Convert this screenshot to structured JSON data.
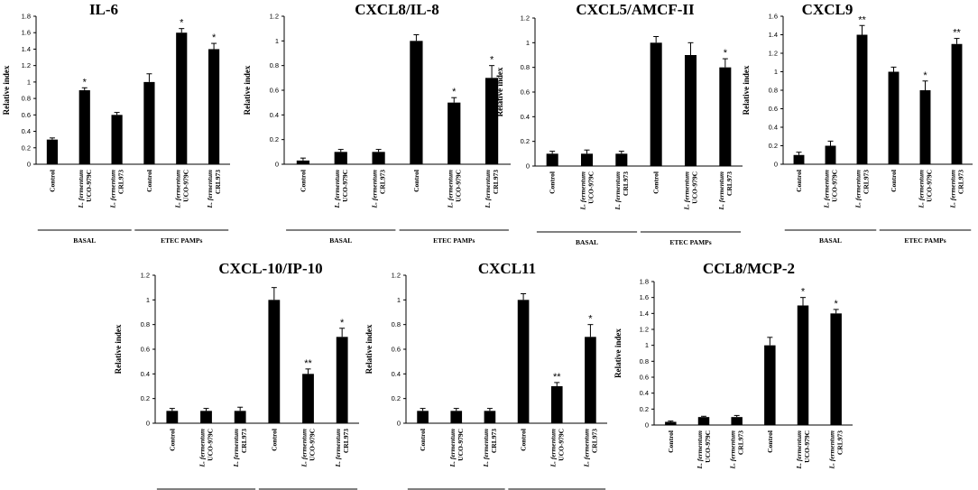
{
  "figure": {
    "background": "#ffffff",
    "bar_color": "#000000"
  },
  "category_labels": {
    "control": "Control",
    "species": "L. fermentum",
    "strain_a": "UCO-979C",
    "strain_b": "CRL973"
  },
  "groups": [
    "BASAL",
    "ETEC PAMPs"
  ],
  "chart_data": [
    {
      "type": "bar",
      "title": "IL-6",
      "ylabel": "Relative index",
      "ylim": [
        0,
        1.8
      ],
      "ytick_step": 0.2,
      "yticks": [
        "0",
        "0.2",
        "0.4",
        "0.6",
        "0.8",
        "1",
        "1.2",
        "1.4",
        "1.6",
        "1.8"
      ],
      "categories": [
        "Control",
        "L. fermentum UCO-979C",
        "L. fermentum CRL973",
        "Control",
        "L. fermentum UCO-979C",
        "L. fermentum CRL973"
      ],
      "values": [
        0.3,
        0.9,
        0.6,
        1.0,
        1.6,
        1.4
      ],
      "errors": [
        0.02,
        0.03,
        0.03,
        0.1,
        0.05,
        0.07
      ],
      "significance": [
        "",
        "*",
        "",
        "",
        "*",
        "*"
      ]
    },
    {
      "type": "bar",
      "title": "CXCL8/IL-8",
      "ylabel": "Relative index",
      "ylim": [
        0,
        1.2
      ],
      "ytick_step": 0.2,
      "yticks": [
        "0",
        "0.2",
        "0.4",
        "0.6",
        "0.8",
        "1",
        "1.2"
      ],
      "categories": [
        "Control",
        "L. fermentum UCO-979C",
        "L. fermentum CRL973",
        "Control",
        "L. fermentum UCO-979C",
        "L. fermentum CRL973"
      ],
      "values": [
        0.03,
        0.1,
        0.1,
        1.0,
        0.5,
        0.7
      ],
      "errors": [
        0.02,
        0.02,
        0.02,
        0.05,
        0.04,
        0.1
      ],
      "significance": [
        "",
        "",
        "",
        "",
        "*",
        "*"
      ]
    },
    {
      "type": "bar",
      "title": "CXCL5/AMCF-II",
      "ylabel": "Relative index",
      "ylim": [
        0,
        1.2
      ],
      "ytick_step": 0.2,
      "yticks": [
        "0",
        "0.2",
        "0.4",
        "0.6",
        "0.8",
        "1",
        "1.2"
      ],
      "categories": [
        "Control",
        "L. fermentum UCO-979C",
        "L. fermentum CRL973",
        "Control",
        "L. fermentum UCO-979C",
        "L. fermentum CRL973"
      ],
      "values": [
        0.1,
        0.1,
        0.1,
        1.0,
        0.9,
        0.8
      ],
      "errors": [
        0.02,
        0.03,
        0.02,
        0.05,
        0.1,
        0.07
      ],
      "significance": [
        "",
        "",
        "",
        "",
        "",
        "*"
      ]
    },
    {
      "type": "bar",
      "title": "CXCL9",
      "ylabel": "Relative index",
      "ylim": [
        0,
        1.6
      ],
      "ytick_step": 0.2,
      "yticks": [
        "0",
        "0.2",
        "0.4",
        "0.6",
        "0.8",
        "1",
        "1.2",
        "1.4",
        "1.6"
      ],
      "categories": [
        "Control",
        "L. fermentum UCO-979C",
        "L. fermentum CRL973",
        "Control",
        "L. fermentum UCO-979C",
        "L. fermentum CRL973"
      ],
      "values": [
        0.1,
        0.2,
        1.4,
        1.0,
        0.8,
        1.3
      ],
      "errors": [
        0.03,
        0.05,
        0.1,
        0.05,
        0.1,
        0.06
      ],
      "significance": [
        "",
        "",
        "**",
        "",
        "*",
        "**"
      ]
    },
    {
      "type": "bar",
      "title": "CXCL-10/IP-10",
      "ylabel": "Relative index",
      "ylim": [
        0,
        1.2
      ],
      "ytick_step": 0.2,
      "yticks": [
        "0",
        "0.2",
        "0.4",
        "0.6",
        "0.8",
        "1",
        "1.2"
      ],
      "categories": [
        "Control",
        "L. fermentum UCO-979C",
        "L. fermentum CRL973",
        "Control",
        "L. fermentum UCO-979C",
        "L. fermentum CRL973"
      ],
      "values": [
        0.1,
        0.1,
        0.1,
        1.0,
        0.4,
        0.7
      ],
      "errors": [
        0.02,
        0.02,
        0.03,
        0.1,
        0.04,
        0.07
      ],
      "significance": [
        "",
        "",
        "",
        "",
        "**",
        "*"
      ]
    },
    {
      "type": "bar",
      "title": "CXCL11",
      "ylabel": "Relative index",
      "ylim": [
        0,
        1.2
      ],
      "ytick_step": 0.2,
      "yticks": [
        "0",
        "0.2",
        "0.4",
        "0.6",
        "0.8",
        "1",
        "1.2"
      ],
      "categories": [
        "Control",
        "L. fermentum UCO-979C",
        "L. fermentum CRL973",
        "Control",
        "L. fermentum UCO-979C",
        "L. fermentum CRL973"
      ],
      "values": [
        0.1,
        0.1,
        0.1,
        1.0,
        0.3,
        0.7
      ],
      "errors": [
        0.02,
        0.02,
        0.02,
        0.05,
        0.03,
        0.1
      ],
      "significance": [
        "",
        "",
        "",
        "",
        "**",
        "*"
      ]
    },
    {
      "type": "bar",
      "title": "CCL8/MCP-2",
      "ylabel": "Relative index",
      "ylim": [
        0,
        1.8
      ],
      "ytick_step": 0.2,
      "yticks": [
        "0",
        "0.2",
        "0.4",
        "0.6",
        "0.8",
        "1",
        "1.2",
        "1.4",
        "1.6",
        "1.8"
      ],
      "categories": [
        "Control",
        "L. fermentum UCO-979C",
        "L. fermentum CRL973",
        "Control",
        "L. fermentum UCO-979C",
        "L. fermentum CRL973"
      ],
      "values": [
        0.04,
        0.1,
        0.1,
        1.0,
        1.5,
        1.4
      ],
      "errors": [
        0.01,
        0.01,
        0.02,
        0.1,
        0.1,
        0.05
      ],
      "significance": [
        "",
        "",
        "",
        "",
        "*",
        "*"
      ]
    }
  ]
}
